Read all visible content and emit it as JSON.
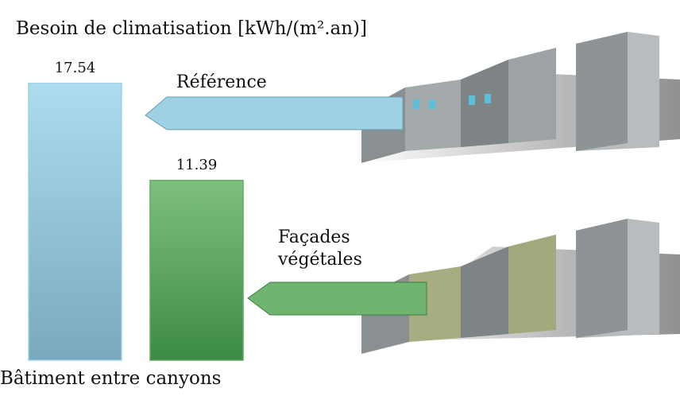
{
  "chart_data": {
    "type": "bar",
    "title": "Besoin de climatisation [kWh/(m².an)]",
    "x_label": "Bâtiment entre canyons",
    "categories": [
      "Référence",
      "Façades végétales"
    ],
    "values": [
      17.54,
      11.39
    ],
    "colors": [
      "#9fd0e3",
      "#5fa862"
    ],
    "ylim": [
      0,
      20
    ]
  }
}
